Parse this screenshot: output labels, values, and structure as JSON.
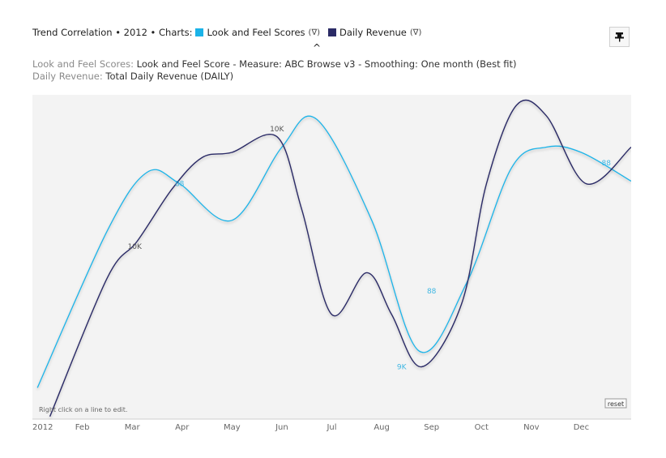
{
  "header": {
    "title_prefix": "Trend Correlation • 2012 • Charts:",
    "filter_glyph": "(∇)",
    "collapse_glyph": "^"
  },
  "descriptions": [
    {
      "key": "Look and Feel Scores:",
      "value": "Look and Feel Score - Measure: ABC Browse v3 - Smoothing: One month (Best fit)"
    },
    {
      "key": "Daily Revenue:",
      "value": "Total Daily Revenue (DAILY)"
    }
  ],
  "pin_icon": "pin-icon",
  "chart_data": {
    "type": "line",
    "x_tick_labels": [
      "2012",
      "Feb",
      "Mar",
      "Apr",
      "May",
      "Jun",
      "Jul",
      "Aug",
      "Sep",
      "Oct",
      "Nov",
      "Dec"
    ],
    "xlim": [
      1,
      13
    ],
    "grid": false,
    "hint": "Right click on a line to edit.",
    "reset_label": "reset",
    "series": [
      {
        "name": "Look and Feel Scores",
        "color": "#1bb3e8",
        "x": [
          1.1,
          2.5,
          3.3,
          3.95,
          5.0,
          6.0,
          6.7,
          7.8,
          8.75,
          9.7,
          10.6,
          11.3,
          12.0,
          13.0
        ],
        "y": [
          60,
          360,
          472,
          450,
          380,
          520,
          573,
          380,
          130,
          260,
          480,
          520,
          510,
          455
        ],
        "annotations": [
          {
            "x": 3.95,
            "y": 450,
            "text": "88"
          },
          {
            "x": 8.4,
            "y": 100,
            "text": "9K"
          },
          {
            "x": 9.0,
            "y": 245,
            "text": "88"
          },
          {
            "x": 12.5,
            "y": 490,
            "text": "88"
          }
        ]
      },
      {
        "name": "Daily Revenue",
        "color": "#2b2b66",
        "x": [
          1.35,
          2.5,
          3.1,
          3.8,
          4.4,
          5.0,
          5.9,
          6.4,
          7.0,
          7.7,
          8.2,
          8.8,
          9.6,
          10.1,
          10.7,
          11.3,
          12.1,
          13.0
        ],
        "y": [
          5,
          270,
          340,
          440,
          500,
          510,
          540,
          400,
          200,
          280,
          200,
          100,
          220,
          450,
          600,
          580,
          450,
          520
        ],
        "annotations": [
          {
            "x": 3.05,
            "y": 330,
            "text": "10K"
          },
          {
            "x": 5.9,
            "y": 555,
            "text": "10K"
          }
        ]
      }
    ]
  }
}
